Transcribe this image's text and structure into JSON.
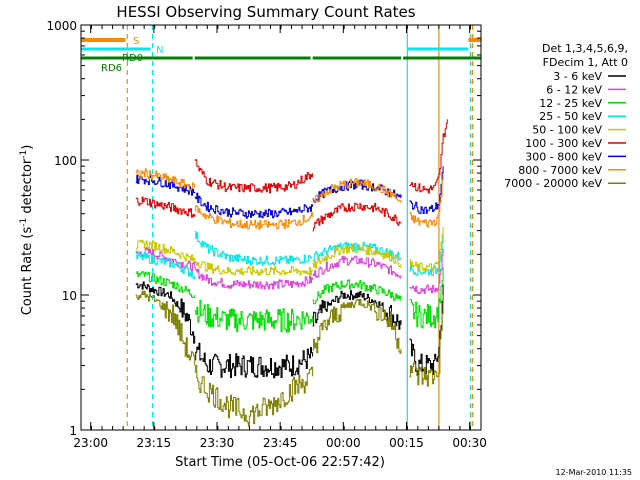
{
  "chart_data": {
    "type": "line",
    "title": "HESSI Observing Summary Count Rates",
    "xlabel": "Start Time (05-Oct-06 22:57:42)",
    "ylabel": "Count Rate (s⁻¹ detector⁻¹)",
    "ylabel_main": "Count Rate (s",
    "ylabel_sup1": "-1",
    "ylabel_mid": " detector",
    "ylabel_sup2": "-1",
    "ylabel_end": ")",
    "y_scale": "log",
    "ylim": [
      1,
      1000
    ],
    "xlim_minutes_since_start": [
      0,
      95
    ],
    "x_ticks": [
      "23:00",
      "23:15",
      "23:30",
      "23:45",
      "00:00",
      "00:15",
      "00:30"
    ],
    "x_tick_minutes": [
      2.3,
      17.3,
      32.3,
      47.3,
      62.3,
      77.3,
      92.3
    ],
    "y_tick_labels": [
      "1",
      "10",
      "100",
      "1000"
    ],
    "y_tick_values": [
      1,
      10,
      100,
      1000
    ],
    "footer_date": "12-Mar-2010 11:35",
    "legend": {
      "header": [
        "Det 1,3,4,5,6,9,",
        "FDecim 1, Att 0"
      ],
      "entries": [
        {
          "label": "3 - 6 keV",
          "color": "#000000"
        },
        {
          "label": "6 - 12 keV",
          "color": "#e040e0"
        },
        {
          "label": "12 - 25 keV",
          "color": "#00e000"
        },
        {
          "label": "25 - 50 keV",
          "color": "#00e8e8"
        },
        {
          "label": "50 - 100 keV",
          "color": "#c8c800"
        },
        {
          "label": "100 - 300 keV",
          "color": "#e00000"
        },
        {
          "label": "300 - 800 keV",
          "color": "#0000d0"
        },
        {
          "label": "800 - 7000 keV",
          "color": "#ff8800"
        },
        {
          "label": "7000 - 20000 keV",
          "color": "#808000"
        }
      ]
    },
    "flags": [
      {
        "label": "S",
        "color": "#ff8800",
        "intervals": [
          [
            0,
            11
          ],
          [
            92,
            95
          ]
        ]
      },
      {
        "label": "N",
        "color": "#00e8e8",
        "intervals": [
          [
            0,
            17
          ],
          [
            77.5,
            92
          ]
        ]
      },
      {
        "label": "RD0",
        "color": "#008000",
        "intervals": [
          [
            0,
            27
          ],
          [
            27,
            55
          ],
          [
            55,
            76.5
          ],
          [
            76.5,
            95
          ]
        ]
      },
      {
        "label": "RD6",
        "color": "#008000",
        "intervals": []
      }
    ],
    "vertical_markers": [
      {
        "minute": 11,
        "color": "#ff8800",
        "style": "dashed"
      },
      {
        "minute": 17,
        "color": "#00e8e8",
        "style": "dashed"
      },
      {
        "minute": 77.5,
        "color": "#00e8e8",
        "style": "solid"
      },
      {
        "minute": 85,
        "color": "#ff8800",
        "style": "solid"
      },
      {
        "minute": 92.5,
        "color": "#00e8e8",
        "style": "dashed"
      },
      {
        "minute": 93,
        "color": "#ff8800",
        "style": "dashed"
      }
    ],
    "series": [
      {
        "name": "3 - 6 keV",
        "color": "#000000",
        "segments": [
          {
            "x": [
              13,
              14,
              17,
              21,
              25,
              27
            ],
            "y": [
              12,
              12,
              11,
              10,
              7,
              5
            ]
          },
          {
            "x": [
              27,
              30,
              35,
              40,
              45,
              50,
              55
            ],
            "y": [
              4,
              3,
              3,
              3,
              3,
              3,
              3.5
            ]
          },
          {
            "x": [
              55,
              58,
              62,
              66,
              70,
              74,
              76
            ],
            "y": [
              6,
              8,
              10,
              10,
              9,
              7,
              6
            ]
          },
          {
            "x": [
              78,
              80,
              82,
              84,
              85,
              86
            ],
            "y": [
              4,
              3,
              3,
              3,
              4,
              12
            ]
          }
        ]
      },
      {
        "name": "6 - 12 keV",
        "color": "#e040e0",
        "segments": [
          {
            "x": [
              13,
              15,
              18,
              22,
              27
            ],
            "y": [
              20,
              21,
              20,
              18,
              16
            ]
          },
          {
            "x": [
              27,
              30,
              35,
              40,
              45,
              50,
              55
            ],
            "y": [
              15,
              13,
              12,
              12,
              12,
              12,
              13
            ]
          },
          {
            "x": [
              55,
              58,
              62,
              66,
              70,
              74,
              76
            ],
            "y": [
              14,
              16,
              18,
              18,
              17,
              15,
              14
            ]
          },
          {
            "x": [
              78,
              80,
              82,
              84,
              85,
              86
            ],
            "y": [
              12,
              11,
              11,
              11,
              12,
              22
            ]
          }
        ]
      },
      {
        "name": "12 - 25 keV",
        "color": "#00e000",
        "segments": [
          {
            "x": [
              13,
              15,
              18,
              22,
              27
            ],
            "y": [
              14,
              14,
              13,
              12,
              10
            ]
          },
          {
            "x": [
              27,
              30,
              35,
              40,
              45,
              50,
              55
            ],
            "y": [
              8,
              7,
              6.5,
              6.5,
              6.5,
              6.5,
              7
            ]
          },
          {
            "x": [
              55,
              58,
              62,
              66,
              70,
              74,
              76
            ],
            "y": [
              9,
              11,
              12,
              12,
              11,
              10,
              9
            ]
          },
          {
            "x": [
              78,
              80,
              82,
              84,
              85,
              86
            ],
            "y": [
              8,
              7,
              7,
              7,
              8,
              16
            ]
          }
        ]
      },
      {
        "name": "25 - 50 keV",
        "color": "#00e8e8",
        "segments": [
          {
            "x": [
              13,
              15,
              18,
              22,
              27
            ],
            "y": [
              19,
              19,
              18,
              17,
              14
            ]
          },
          {
            "x": [
              27,
              30,
              35,
              40,
              45,
              50,
              55
            ],
            "y": [
              28,
              22,
              19,
              18,
              18,
              18,
              19
            ]
          },
          {
            "x": [
              55,
              58,
              62,
              66,
              70,
              74,
              76
            ],
            "y": [
              19,
              21,
              23,
              23,
              22,
              20,
              19
            ]
          },
          {
            "x": [
              78,
              80,
              82,
              84,
              85,
              86
            ],
            "y": [
              16,
              15,
              15,
              15,
              16,
              30
            ]
          }
        ]
      },
      {
        "name": "50 - 100 keV",
        "color": "#c8c800",
        "segments": [
          {
            "x": [
              13,
              15,
              18,
              22,
              27
            ],
            "y": [
              23,
              24,
              23,
              21,
              18
            ]
          },
          {
            "x": [
              27,
              30,
              35,
              40,
              45,
              50,
              55
            ],
            "y": [
              18,
              16,
              15,
              15,
              15,
              15,
              15
            ]
          },
          {
            "x": [
              55,
              58,
              62,
              66,
              70,
              74,
              76
            ],
            "y": [
              16,
              19,
              22,
              22,
              21,
              19,
              17
            ]
          },
          {
            "x": [
              78,
              80,
              82,
              84,
              85,
              86
            ],
            "y": [
              17,
              16,
              16,
              16,
              18,
              32
            ]
          }
        ]
      },
      {
        "name": "100 - 300 keV",
        "color": "#e00000",
        "segments": [
          {
            "x": [
              13,
              15,
              18,
              22,
              27
            ],
            "y": [
              50,
              50,
              47,
              44,
              40
            ]
          },
          {
            "x": [
              27,
              28,
              30,
              35,
              40,
              45,
              50,
              55
            ],
            "y": [
              100,
              85,
              70,
              62,
              62,
              62,
              64,
              80
            ]
          },
          {
            "x": [
              55,
              58,
              62,
              66,
              70,
              74,
              76
            ],
            "y": [
              32,
              38,
              44,
              46,
              44,
              38,
              34
            ]
          },
          {
            "x": [
              78,
              80,
              82,
              84,
              85,
              86,
              87
            ],
            "y": [
              70,
              62,
              60,
              62,
              75,
              150,
              200
            ]
          }
        ]
      },
      {
        "name": "300 - 800 keV",
        "color": "#0000d0",
        "segments": [
          {
            "x": [
              13,
              15,
              18,
              22,
              27
            ],
            "y": [
              72,
              72,
              70,
              65,
              58
            ]
          },
          {
            "x": [
              27,
              28,
              30,
              35,
              40,
              45,
              50,
              55
            ],
            "y": [
              55,
              50,
              45,
              41,
              40,
              40,
              41,
              45
            ]
          },
          {
            "x": [
              55,
              58,
              62,
              66,
              70,
              74,
              76
            ],
            "y": [
              50,
              58,
              64,
              66,
              63,
              56,
              52
            ]
          },
          {
            "x": [
              78,
              80,
              82,
              84,
              85,
              86
            ],
            "y": [
              48,
              44,
              42,
              44,
              48,
              90
            ]
          }
        ]
      },
      {
        "name": "800 - 7000 keV",
        "color": "#ff8800",
        "segments": [
          {
            "x": [
              13,
              15,
              18,
              22,
              27
            ],
            "y": [
              78,
              80,
              76,
              70,
              62
            ]
          },
          {
            "x": [
              27,
              28,
              30,
              35,
              40,
              45,
              50,
              55
            ],
            "y": [
              45,
              42,
              38,
              34,
              33,
              33,
              34,
              38
            ]
          },
          {
            "x": [
              55,
              58,
              62,
              66,
              70,
              74,
              76
            ],
            "y": [
              48,
              58,
              66,
              68,
              64,
              55,
              48
            ]
          },
          {
            "x": [
              78,
              80,
              82,
              84,
              85,
              86
            ],
            "y": [
              38,
              35,
              34,
              35,
              40,
              80
            ]
          }
        ]
      },
      {
        "name": "7000 - 20000 keV",
        "color": "#808000",
        "segments": [
          {
            "x": [
              13,
              15,
              18,
              22,
              25,
              27
            ],
            "y": [
              10,
              10,
              9,
              7,
              4,
              3
            ]
          },
          {
            "x": [
              27,
              30,
              35,
              40,
              45,
              50,
              55
            ],
            "y": [
              2.5,
              2,
              1.5,
              1.3,
              1.5,
              2,
              2.5
            ]
          },
          {
            "x": [
              55,
              58,
              62,
              66,
              70,
              74,
              76
            ],
            "y": [
              4,
              6,
              8,
              9,
              8,
              6,
              4
            ]
          },
          {
            "x": [
              78,
              80,
              82,
              84,
              85,
              86
            ],
            "y": [
              3,
              2.5,
              2.5,
              2.5,
              3,
              10
            ]
          }
        ]
      }
    ]
  }
}
